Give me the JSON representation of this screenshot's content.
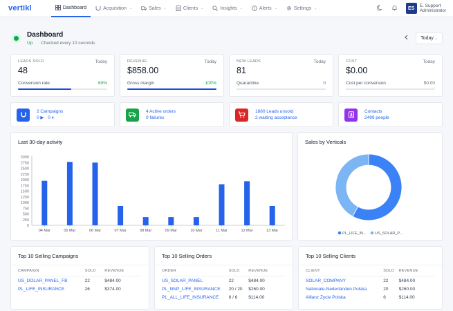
{
  "app": {
    "logo_text": "vertikl",
    "brand_color": "#2563eb"
  },
  "nav": {
    "items": [
      {
        "label": "Dashboard",
        "icon": "grid-icon",
        "active": true
      },
      {
        "label": "Acquisition",
        "icon": "magnet-icon",
        "dropdown": true
      },
      {
        "label": "Sales",
        "icon": "truck-icon",
        "dropdown": true
      },
      {
        "label": "Clients",
        "icon": "building-icon",
        "dropdown": true
      },
      {
        "label": "Insights",
        "icon": "search-icon",
        "dropdown": true
      },
      {
        "label": "Alerts",
        "icon": "alert-icon",
        "dropdown": true
      },
      {
        "label": "Settings",
        "icon": "gear-icon",
        "dropdown": true
      }
    ]
  },
  "user": {
    "initials": "ES",
    "name": "E. Support",
    "role": "Administrator"
  },
  "header": {
    "title": "Dashboard",
    "status": "Up",
    "separator": "·",
    "check_text": "Checked every 10 seconds",
    "period": "Today"
  },
  "stats": [
    {
      "label": "LEADS SOLD",
      "period": "Today",
      "value": "48",
      "foot_label": "Conversion rate",
      "foot_value": "60%",
      "progress": 0.6,
      "foot_green": true
    },
    {
      "label": "REVENUE",
      "period": "Today",
      "value": "$858.00",
      "foot_label": "Gross margin",
      "foot_value": "100%",
      "progress": 1.0,
      "foot_green": true
    },
    {
      "label": "NEW LEADS",
      "period": "Today",
      "value": "81",
      "foot_label": "Quarantine",
      "foot_value": "0",
      "progress": 0,
      "foot_green": false
    },
    {
      "label": "COST",
      "period": "Today",
      "value": "$0.00",
      "foot_label": "Cost per conversion",
      "foot_value": "$0.00",
      "progress": 0,
      "foot_green": false
    }
  ],
  "infos": [
    {
      "line1": "2 Campaigns",
      "line2": "0 ▶ · 0 ⏸",
      "icon": "magnet-icon",
      "color": "#2563eb"
    },
    {
      "line1": "4 Active orders",
      "line2": "0 failures",
      "icon": "truck-icon",
      "color": "#16a34a"
    },
    {
      "line1": "1880 Leads unsold",
      "line2": "2 waiting acceptance",
      "icon": "cart-icon",
      "color": "#dc2626"
    },
    {
      "line1": "Contacts",
      "line2": "2499 people",
      "icon": "contacts-icon",
      "color": "#9333ea"
    }
  ],
  "activity": {
    "title": "Last 30-day activity",
    "chart_data": {
      "type": "bar",
      "categories": [
        "04 Mar",
        "05 Mar",
        "06 Mar",
        "07 Mar",
        "08 Mar",
        "09 Mar",
        "10 Mar",
        "11 Mar",
        "12 Mar",
        "13 Mar"
      ],
      "values": [
        1950,
        2780,
        2750,
        850,
        360,
        360,
        360,
        1800,
        1930,
        850
      ],
      "ylim": [
        0,
        3000
      ],
      "yticks": [
        "0",
        "250",
        "500",
        "750",
        "1000",
        "1250",
        "1500",
        "1750",
        "2000",
        "2250",
        "2500",
        "2750",
        "3000"
      ],
      "color": "#2563eb",
      "grid": false
    }
  },
  "verticals": {
    "title": "Sales by Verticals",
    "chart_data": {
      "type": "pie",
      "donut": true,
      "series": [
        {
          "name": "PL_LIFE_IN...",
          "value": 58,
          "color": "#3b82f6"
        },
        {
          "name": "US_SOLAR_P...",
          "value": 42,
          "color": "#7cb5f4"
        }
      ],
      "legend": "bottom"
    }
  },
  "tables": [
    {
      "title": "Top 10 Selling Campaigns",
      "columns": [
        "CAMPAIGN",
        "SOLD",
        "REVENUE"
      ],
      "rows": [
        [
          "US_DOLAR_PANEL_FB",
          "22",
          "$484.00"
        ],
        [
          "PL_LIFE_INSURANCE",
          "26",
          "$374.00"
        ]
      ]
    },
    {
      "title": "Top 10 Selling Orders",
      "columns": [
        "ORDER",
        "SOLD",
        "REVENUE"
      ],
      "rows": [
        [
          "US_SOLAR_PANEL",
          "22",
          "$484.00"
        ],
        [
          "PL_NNP_LIFE_INSURANCE",
          "20 / 20",
          "$260.00"
        ],
        [
          "PL_ALL_LIFE_INSURANCE",
          "6 / 6",
          "$114.00"
        ]
      ]
    },
    {
      "title": "Top 10 Selling Clients",
      "columns": [
        "CLIENT",
        "SOLD",
        "REVENUE"
      ],
      "rows": [
        [
          "SOLAR_COMPANY",
          "22",
          "$484.00"
        ],
        [
          "Nationale-Nederlanden Polska",
          "20",
          "$260.00"
        ],
        [
          "Allianz Życie Polska",
          "6",
          "$114.00"
        ]
      ]
    }
  ]
}
